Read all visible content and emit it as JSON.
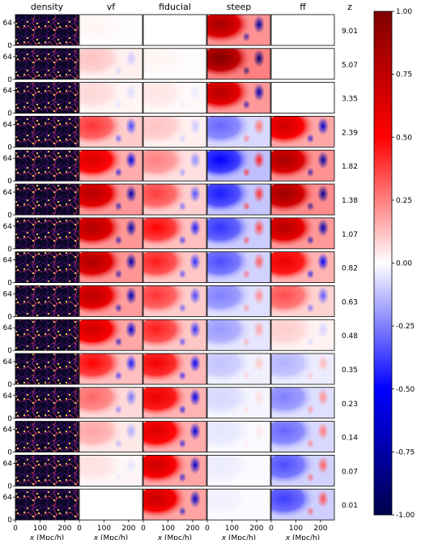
{
  "chart_data": {
    "type": "heatmap",
    "columns": [
      "density",
      "vf",
      "fiducial",
      "steep",
      "ff"
    ],
    "z_header": "z",
    "z_values": [
      "9.01",
      "5.07",
      "3.35",
      "2.39",
      "1.82",
      "1.38",
      "1.07",
      "0.82",
      "0.63",
      "0.48",
      "0.35",
      "0.23",
      "0.14",
      "0.07",
      "0.01"
    ],
    "y_ticks": [
      "64",
      "0"
    ],
    "x_ticks": [
      "0",
      "100",
      "200"
    ],
    "x_label": "x (Mpc/h)",
    "x_label_italic": "x",
    "x_label_rest": " (Mpc/h)",
    "xlim": [
      0,
      256
    ],
    "ylim": [
      0,
      128
    ],
    "colorbar": {
      "range": [
        -1.0,
        1.0
      ],
      "ticks": [
        "1.00",
        "0.75",
        "0.50",
        "0.25",
        "0.00",
        "-0.25",
        "-0.50",
        "-0.75",
        "-1.00"
      ],
      "tick_values": [
        1.0,
        0.75,
        0.5,
        0.25,
        0.0,
        -0.25,
        -0.5,
        -0.75,
        -1.0
      ],
      "colormap": "seismic",
      "colors": [
        "#00004c",
        "#0000ff",
        "#ffffff",
        "#ff0000",
        "#800000"
      ]
    },
    "density_colormap": [
      "#0d0829",
      "#4a0f6e",
      "#a3266e",
      "#e65a2c",
      "#fbd34a"
    ],
    "intensity_by_panel": {
      "vf": [
        0.02,
        0.12,
        0.08,
        0.4,
        0.65,
        0.8,
        0.82,
        0.83,
        0.78,
        0.7,
        0.5,
        0.3,
        0.18,
        0.06,
        0.0
      ],
      "fiducial": [
        0.0,
        0.02,
        0.05,
        0.12,
        0.25,
        0.38,
        0.5,
        0.45,
        0.4,
        0.45,
        0.55,
        0.6,
        0.65,
        0.7,
        0.72
      ],
      "steep": [
        0.85,
        1.0,
        0.8,
        -0.3,
        -0.5,
        -0.45,
        -0.4,
        -0.35,
        -0.25,
        -0.2,
        -0.12,
        -0.08,
        -0.05,
        -0.04,
        -0.03
      ],
      "ff": [
        0.0,
        0.0,
        0.0,
        0.7,
        0.85,
        0.9,
        0.8,
        0.6,
        0.35,
        0.1,
        -0.15,
        -0.25,
        -0.3,
        -0.35,
        -0.38
      ]
    }
  }
}
